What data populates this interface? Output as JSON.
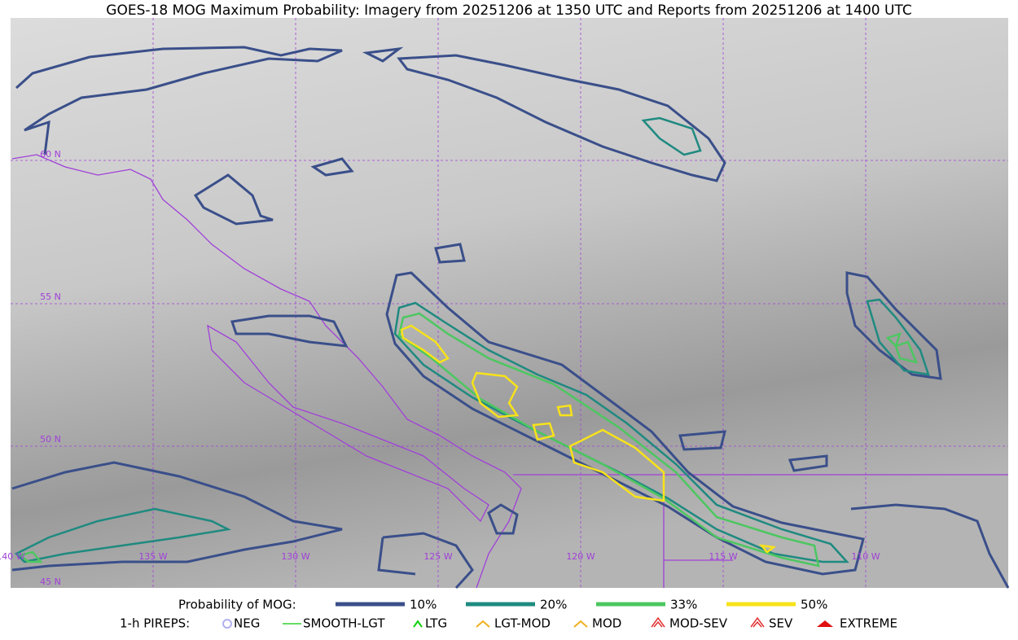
{
  "title": "GOES-18 MOG Maximum Probability: Imagery from 20251206 at 1350 UTC and Reports from 20251206 at 1400 UTC",
  "map": {
    "lat_labels": [
      "60 N",
      "55 N",
      "50 N",
      "45 N"
    ],
    "lon_labels": [
      "140 W",
      "135 W",
      "130 W",
      "125 W",
      "120 W",
      "115 W",
      "110 W"
    ]
  },
  "legend": {
    "title": "Probability of MOG:",
    "items": [
      {
        "label": "10%",
        "color": "#3a4f8a"
      },
      {
        "label": "20%",
        "color": "#1f8a80"
      },
      {
        "label": "33%",
        "color": "#4cc760"
      },
      {
        "label": "50%",
        "color": "#f7e21a"
      }
    ]
  },
  "pireps": {
    "title": "1-h PIREPS:",
    "items": [
      {
        "label": "NEG",
        "color": "#b0b0f0"
      },
      {
        "label": "SMOOTH-LGT",
        "color": "#30d030"
      },
      {
        "label": "LTG",
        "color": "#10d010"
      },
      {
        "label": "LGT-MOD",
        "color": "#f0b020"
      },
      {
        "label": "MOD",
        "color": "#f0b020"
      },
      {
        "label": "MOD-SEV",
        "color": "#e03030"
      },
      {
        "label": "SEV",
        "color": "#e03030"
      },
      {
        "label": "EXTREME",
        "color": "#e01010"
      }
    ]
  }
}
